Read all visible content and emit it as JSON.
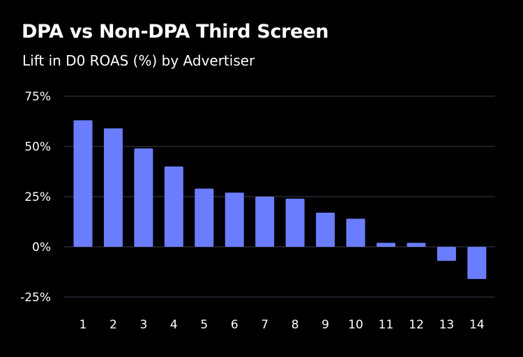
{
  "chart_data": {
    "type": "bar",
    "title": "DPA vs Non-DPA Third Screen",
    "subtitle": "Lift in D0 ROAS (%) by Advertiser",
    "xlabel": "",
    "ylabel": "",
    "categories": [
      "1",
      "2",
      "3",
      "4",
      "5",
      "6",
      "7",
      "8",
      "9",
      "10",
      "11",
      "12",
      "13",
      "14"
    ],
    "values": [
      63,
      59,
      49,
      40,
      29,
      27,
      25,
      24,
      17,
      14,
      2,
      2,
      -7,
      -16
    ],
    "ylim": [
      -25,
      75
    ],
    "yticks": [
      75,
      50,
      25,
      0,
      -25
    ],
    "ytick_labels": [
      "75%",
      "50%",
      "25%",
      "0%",
      "-25%"
    ],
    "grid": true,
    "legend": "none",
    "colors": {
      "bar": "#6b7dff",
      "grid": "#3b3d4e",
      "background": "#000000",
      "text": "#ffffff"
    }
  }
}
